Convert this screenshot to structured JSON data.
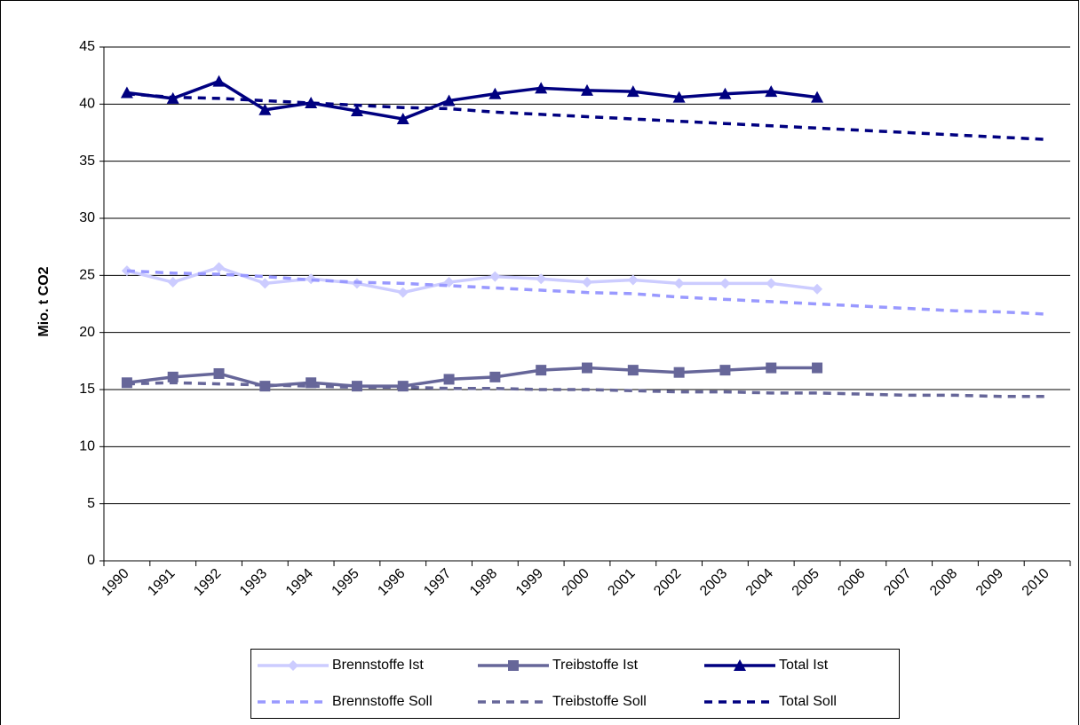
{
  "chart_data": {
    "type": "line",
    "y_label": "Mio. t CO2",
    "categories": [
      "1990",
      "1991",
      "1992",
      "1993",
      "1994",
      "1995",
      "1996",
      "1997",
      "1998",
      "1999",
      "2000",
      "2001",
      "2002",
      "2003",
      "2004",
      "2005",
      "2006",
      "2007",
      "2008",
      "2009",
      "2010"
    ],
    "ylim": [
      0,
      45
    ],
    "yticks": [
      0,
      5,
      10,
      15,
      20,
      25,
      30,
      35,
      40,
      45
    ],
    "grid": true,
    "legend": "bottom",
    "series": [
      {
        "name": "Brennstoffe Ist",
        "color": "#ccccff",
        "marker": "diamond",
        "dashed": false,
        "values": [
          25.4,
          24.4,
          25.7,
          24.3,
          24.7,
          24.3,
          23.5,
          24.4,
          24.9,
          24.7,
          24.4,
          24.6,
          24.3,
          24.3,
          24.3,
          23.8,
          null,
          null,
          null,
          null,
          null
        ]
      },
      {
        "name": "Treibstoffe Ist",
        "color": "#666699",
        "marker": "square",
        "dashed": false,
        "values": [
          15.6,
          16.1,
          16.4,
          15.3,
          15.6,
          15.3,
          15.3,
          15.9,
          16.1,
          16.7,
          16.9,
          16.7,
          16.5,
          16.7,
          16.9,
          16.9,
          null,
          null,
          null,
          null,
          null
        ]
      },
      {
        "name": "Total Ist",
        "color": "#000080",
        "marker": "triangle",
        "dashed": false,
        "values": [
          41.0,
          40.5,
          42.0,
          39.5,
          40.1,
          39.4,
          38.7,
          40.3,
          40.9,
          41.4,
          41.2,
          41.1,
          40.6,
          40.9,
          41.1,
          40.6,
          null,
          null,
          null,
          null,
          null
        ]
      },
      {
        "name": "Brennstoffe Soll",
        "color": "#9999ff",
        "marker": "none",
        "dashed": true,
        "values": [
          25.4,
          25.2,
          25.1,
          24.9,
          24.6,
          24.4,
          24.3,
          24.1,
          23.9,
          23.7,
          23.5,
          23.4,
          23.1,
          22.9,
          22.7,
          22.5,
          22.3,
          22.1,
          21.9,
          21.8,
          21.6
        ]
      },
      {
        "name": "Treibstoffe Soll",
        "color": "#666699",
        "marker": "none",
        "dashed": true,
        "values": [
          15.5,
          15.6,
          15.5,
          15.4,
          15.3,
          15.2,
          15.2,
          15.1,
          15.1,
          15.0,
          15.0,
          14.9,
          14.8,
          14.8,
          14.7,
          14.7,
          14.6,
          14.5,
          14.5,
          14.4,
          14.4
        ]
      },
      {
        "name": "Total Soll",
        "color": "#000080",
        "marker": "none",
        "dashed": true,
        "values": [
          40.9,
          40.6,
          40.5,
          40.3,
          40.1,
          39.9,
          39.7,
          39.6,
          39.3,
          39.1,
          38.9,
          38.7,
          38.5,
          38.3,
          38.1,
          37.9,
          37.7,
          37.5,
          37.3,
          37.1,
          36.9
        ]
      }
    ]
  }
}
